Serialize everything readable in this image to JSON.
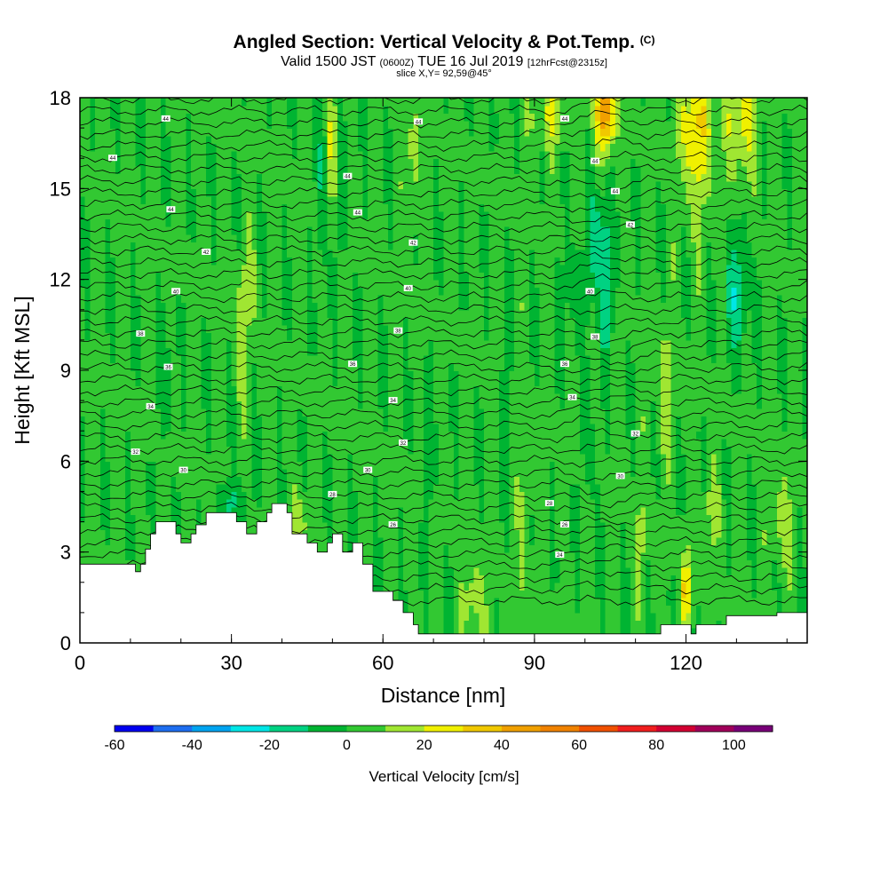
{
  "title": {
    "main": "Angled Section: Vertical Velocity & Pot.Temp.",
    "main_units": "(C)",
    "valid_a": "Valid 1500 JST",
    "valid_b": "(0600Z)",
    "valid_c": "TUE 16 Jul 2019",
    "valid_d": "[12hrFcst@2315z]",
    "slice": "slice X,Y= 92,59@45°"
  },
  "colorbar": {
    "title": "Vertical Velocity [cm/s]",
    "labels": [
      "-60",
      "-40",
      "-20",
      "0",
      "20",
      "40",
      "60",
      "80",
      "100"
    ],
    "bounds": [
      -60,
      110
    ],
    "step": 10,
    "colors": [
      "#0000f0",
      "#1e6ef0",
      "#00a4f0",
      "#00e6e6",
      "#00d282",
      "#00b432",
      "#32c832",
      "#a0e632",
      "#f0f000",
      "#f0c800",
      "#f0a000",
      "#f08200",
      "#f05000",
      "#f01e1e",
      "#d20032",
      "#a0005a",
      "#780078"
    ]
  },
  "chart_data": {
    "type": "heatmap",
    "title": "Angled Section: Vertical Velocity & Pot.Temp.",
    "xlabel": "Distance [nm]",
    "ylabel": "Height [Kft MSL]",
    "xlim": [
      0,
      144
    ],
    "ylim": [
      0,
      18
    ],
    "xticks": [
      "0",
      "30",
      "60",
      "90",
      "120"
    ],
    "yticks": [
      "0",
      "3",
      "6",
      "9",
      "12",
      "15",
      "18"
    ],
    "field": "Vertical Velocity",
    "field_units": "cm/s",
    "contour_field": "Pot.Temp.",
    "contour_units": "C",
    "terrain": [
      {
        "x": 0,
        "h": 2.6
      },
      {
        "x": 10,
        "h": 2.6
      },
      {
        "x": 11,
        "h": 2.35
      },
      {
        "x": 12,
        "h": 2.6
      },
      {
        "x": 13,
        "h": 3.1
      },
      {
        "x": 14,
        "h": 3.6
      },
      {
        "x": 15,
        "h": 4.0
      },
      {
        "x": 19,
        "h": 3.6
      },
      {
        "x": 20,
        "h": 3.3
      },
      {
        "x": 22,
        "h": 3.6
      },
      {
        "x": 23,
        "h": 3.9
      },
      {
        "x": 25,
        "h": 4.3
      },
      {
        "x": 31,
        "h": 4.0
      },
      {
        "x": 33,
        "h": 3.6
      },
      {
        "x": 35,
        "h": 4.0
      },
      {
        "x": 37,
        "h": 4.3
      },
      {
        "x": 38,
        "h": 4.6
      },
      {
        "x": 41,
        "h": 4.3
      },
      {
        "x": 42,
        "h": 3.6
      },
      {
        "x": 45,
        "h": 3.3
      },
      {
        "x": 47,
        "h": 3.0
      },
      {
        "x": 49,
        "h": 3.3
      },
      {
        "x": 50,
        "h": 3.6
      },
      {
        "x": 52,
        "h": 3.0
      },
      {
        "x": 54,
        "h": 3.3
      },
      {
        "x": 56,
        "h": 2.6
      },
      {
        "x": 58,
        "h": 1.7
      },
      {
        "x": 62,
        "h": 1.4
      },
      {
        "x": 64,
        "h": 1.0
      },
      {
        "x": 66,
        "h": 0.6
      },
      {
        "x": 67,
        "h": 0.3
      },
      {
        "x": 114,
        "h": 0.3
      },
      {
        "x": 115,
        "h": 0.6
      },
      {
        "x": 121,
        "h": 0.3
      },
      {
        "x": 122,
        "h": 0.6
      },
      {
        "x": 128,
        "h": 0.9
      },
      {
        "x": 138,
        "h": 1.0
      },
      {
        "x": 144,
        "h": 1.3
      }
    ],
    "contour_labels": [
      {
        "x": 17,
        "y": 17.3,
        "text": "44"
      },
      {
        "x": 67,
        "y": 17.2,
        "text": "44"
      },
      {
        "x": 96,
        "y": 17.3,
        "text": "44"
      },
      {
        "x": 6.5,
        "y": 16.0,
        "text": "44"
      },
      {
        "x": 53,
        "y": 15.4,
        "text": "44"
      },
      {
        "x": 102,
        "y": 15.9,
        "text": "44"
      },
      {
        "x": 18,
        "y": 14.3,
        "text": "44"
      },
      {
        "x": 55,
        "y": 14.2,
        "text": "44"
      },
      {
        "x": 106,
        "y": 14.9,
        "text": "44"
      },
      {
        "x": 25,
        "y": 12.9,
        "text": "42"
      },
      {
        "x": 66,
        "y": 13.2,
        "text": "42"
      },
      {
        "x": 109,
        "y": 13.8,
        "text": "42"
      },
      {
        "x": 19,
        "y": 11.6,
        "text": "40"
      },
      {
        "x": 65,
        "y": 11.7,
        "text": "40"
      },
      {
        "x": 101,
        "y": 11.6,
        "text": "40"
      },
      {
        "x": 12,
        "y": 10.2,
        "text": "38"
      },
      {
        "x": 63,
        "y": 10.3,
        "text": "38"
      },
      {
        "x": 102,
        "y": 10.1,
        "text": "38"
      },
      {
        "x": 17.5,
        "y": 9.1,
        "text": "36"
      },
      {
        "x": 54,
        "y": 9.2,
        "text": "36"
      },
      {
        "x": 96,
        "y": 9.2,
        "text": "36"
      },
      {
        "x": 14,
        "y": 7.8,
        "text": "34"
      },
      {
        "x": 62,
        "y": 8.0,
        "text": "34"
      },
      {
        "x": 97.5,
        "y": 8.1,
        "text": "34"
      },
      {
        "x": 11,
        "y": 6.3,
        "text": "32"
      },
      {
        "x": 64,
        "y": 6.6,
        "text": "32"
      },
      {
        "x": 110,
        "y": 6.9,
        "text": "32"
      },
      {
        "x": 20.5,
        "y": 5.7,
        "text": "30"
      },
      {
        "x": 57,
        "y": 5.7,
        "text": "30"
      },
      {
        "x": 107,
        "y": 5.5,
        "text": "30"
      },
      {
        "x": 50,
        "y": 4.9,
        "text": "28"
      },
      {
        "x": 93,
        "y": 4.6,
        "text": "28"
      },
      {
        "x": 62,
        "y": 3.9,
        "text": "26"
      },
      {
        "x": 96,
        "y": 3.9,
        "text": "26"
      },
      {
        "x": 95,
        "y": 2.9,
        "text": "24"
      }
    ]
  }
}
